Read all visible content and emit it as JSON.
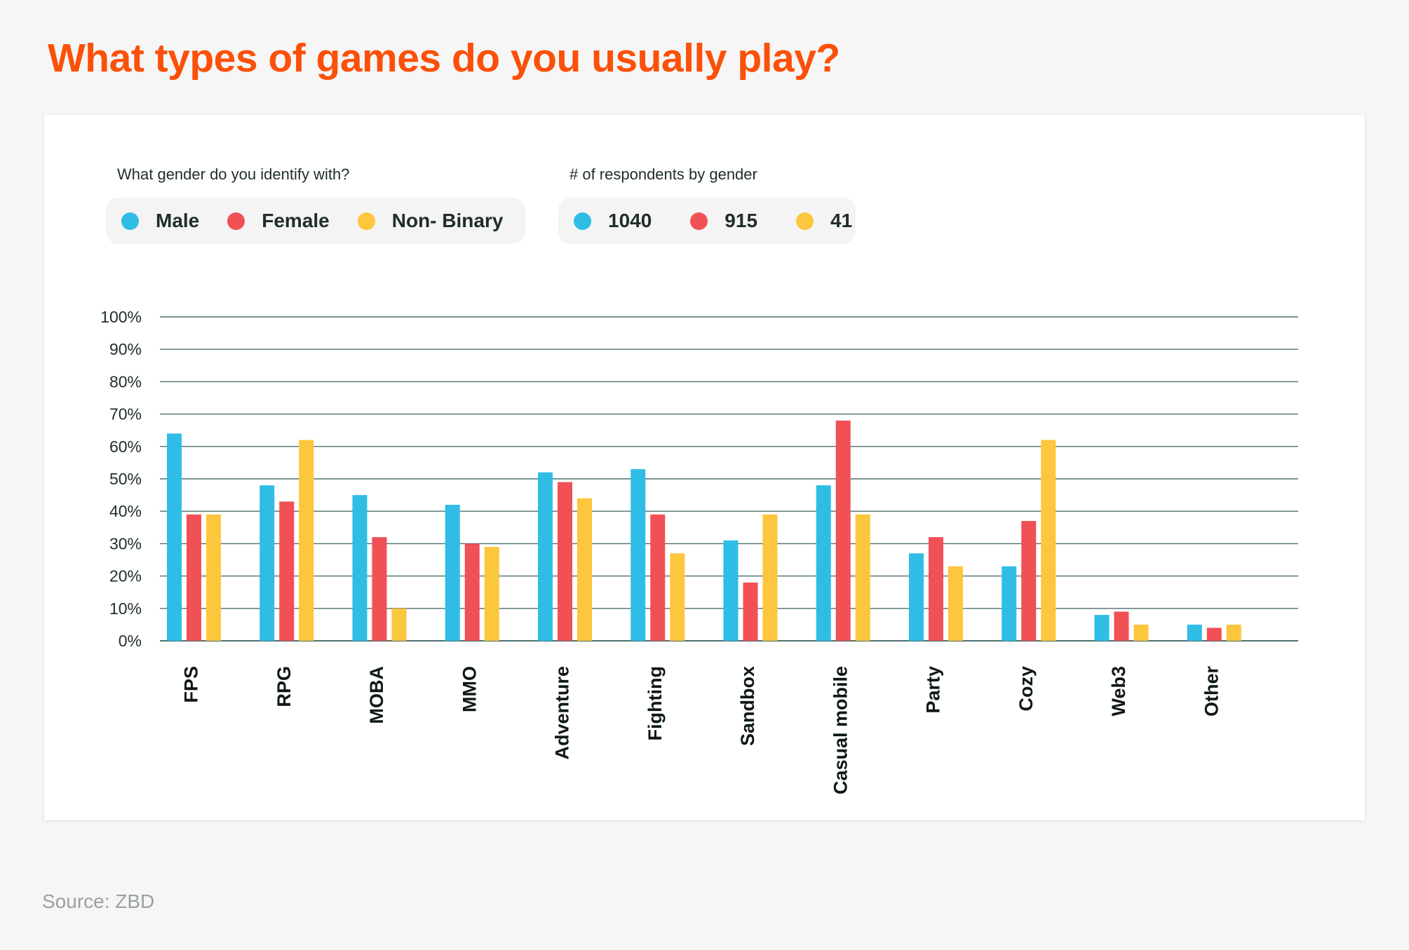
{
  "title": "What types of games do you usually play?",
  "legend_gender": {
    "heading": "What gender do you identify with?",
    "items": [
      "Male",
      "Female",
      "Non- Binary"
    ]
  },
  "legend_respondents": {
    "heading": "# of respondents by gender",
    "items": [
      "1040",
      "915",
      "41"
    ]
  },
  "colors": {
    "male": "#2fbde6",
    "female": "#f05056",
    "nonbinary": "#fcc63d",
    "title": "#fb5009",
    "grid": "#4d6f70"
  },
  "source": "Source: ZBD",
  "chart_data": {
    "type": "bar",
    "title": "What types of games do you usually play?",
    "xlabel": "",
    "ylabel": "",
    "ylim": [
      0,
      100
    ],
    "yticks": [
      "0%",
      "10%",
      "20%",
      "30%",
      "40%",
      "50%",
      "60%",
      "70%",
      "80%",
      "90%",
      "100%"
    ],
    "grid": true,
    "legend_position": "top-left",
    "categories": [
      "FPS",
      "RPG",
      "MOBA",
      "MMO",
      "Adventure",
      "Fighting",
      "Sandbox",
      "Casual mobile",
      "Party",
      "Cozy",
      "Web3",
      "Other"
    ],
    "series": [
      {
        "name": "Male",
        "color": "#2fbde6",
        "values": [
          64,
          48,
          45,
          42,
          52,
          53,
          31,
          48,
          27,
          23,
          8,
          5
        ]
      },
      {
        "name": "Female",
        "color": "#f05056",
        "values": [
          39,
          43,
          32,
          30,
          49,
          39,
          18,
          68,
          32,
          37,
          9,
          4
        ]
      },
      {
        "name": "Non- Binary",
        "color": "#fcc63d",
        "values": [
          39,
          62,
          10,
          29,
          44,
          27,
          39,
          39,
          23,
          62,
          5,
          5
        ]
      }
    ]
  }
}
